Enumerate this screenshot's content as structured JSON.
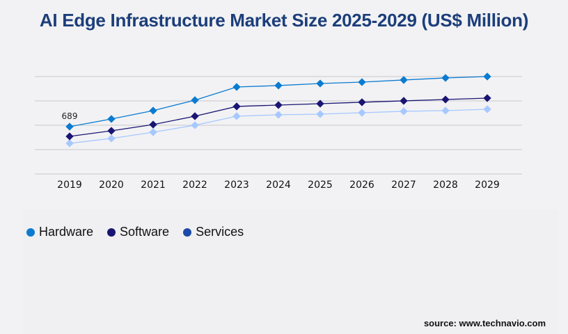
{
  "chart_data": {
    "type": "line",
    "title": "AI Edge Infrastructure Market Size 2025-2029 (US$ Million)",
    "categories": [
      "2019",
      "2020",
      "2021",
      "2022",
      "2023",
      "2024",
      "2025",
      "2026",
      "2027",
      "2028",
      "2029"
    ],
    "ylim": [
      0,
      1418
    ],
    "grid": true,
    "legend_placement": "bottom-left",
    "annotations": [
      {
        "series": "Hardware",
        "category": "2019",
        "label": "689"
      }
    ],
    "series": [
      {
        "name": "Hardware",
        "color": "#0a7bd0",
        "values": [
          689,
          800,
          922,
          1074,
          1266,
          1287,
          1317,
          1337,
          1368,
          1398,
          1418
        ]
      },
      {
        "name": "Software",
        "color": "#1a1572",
        "values": [
          547,
          628,
          719,
          841,
          983,
          1003,
          1023,
          1044,
          1064,
          1084,
          1104
        ]
      },
      {
        "name": "Services",
        "color": "#a6c8ff",
        "legend_color": "#1b4aa8",
        "values": [
          446,
          517,
          608,
          709,
          841,
          861,
          871,
          891,
          912,
          922,
          942
        ]
      }
    ]
  },
  "source": "source: www.technavio.com"
}
